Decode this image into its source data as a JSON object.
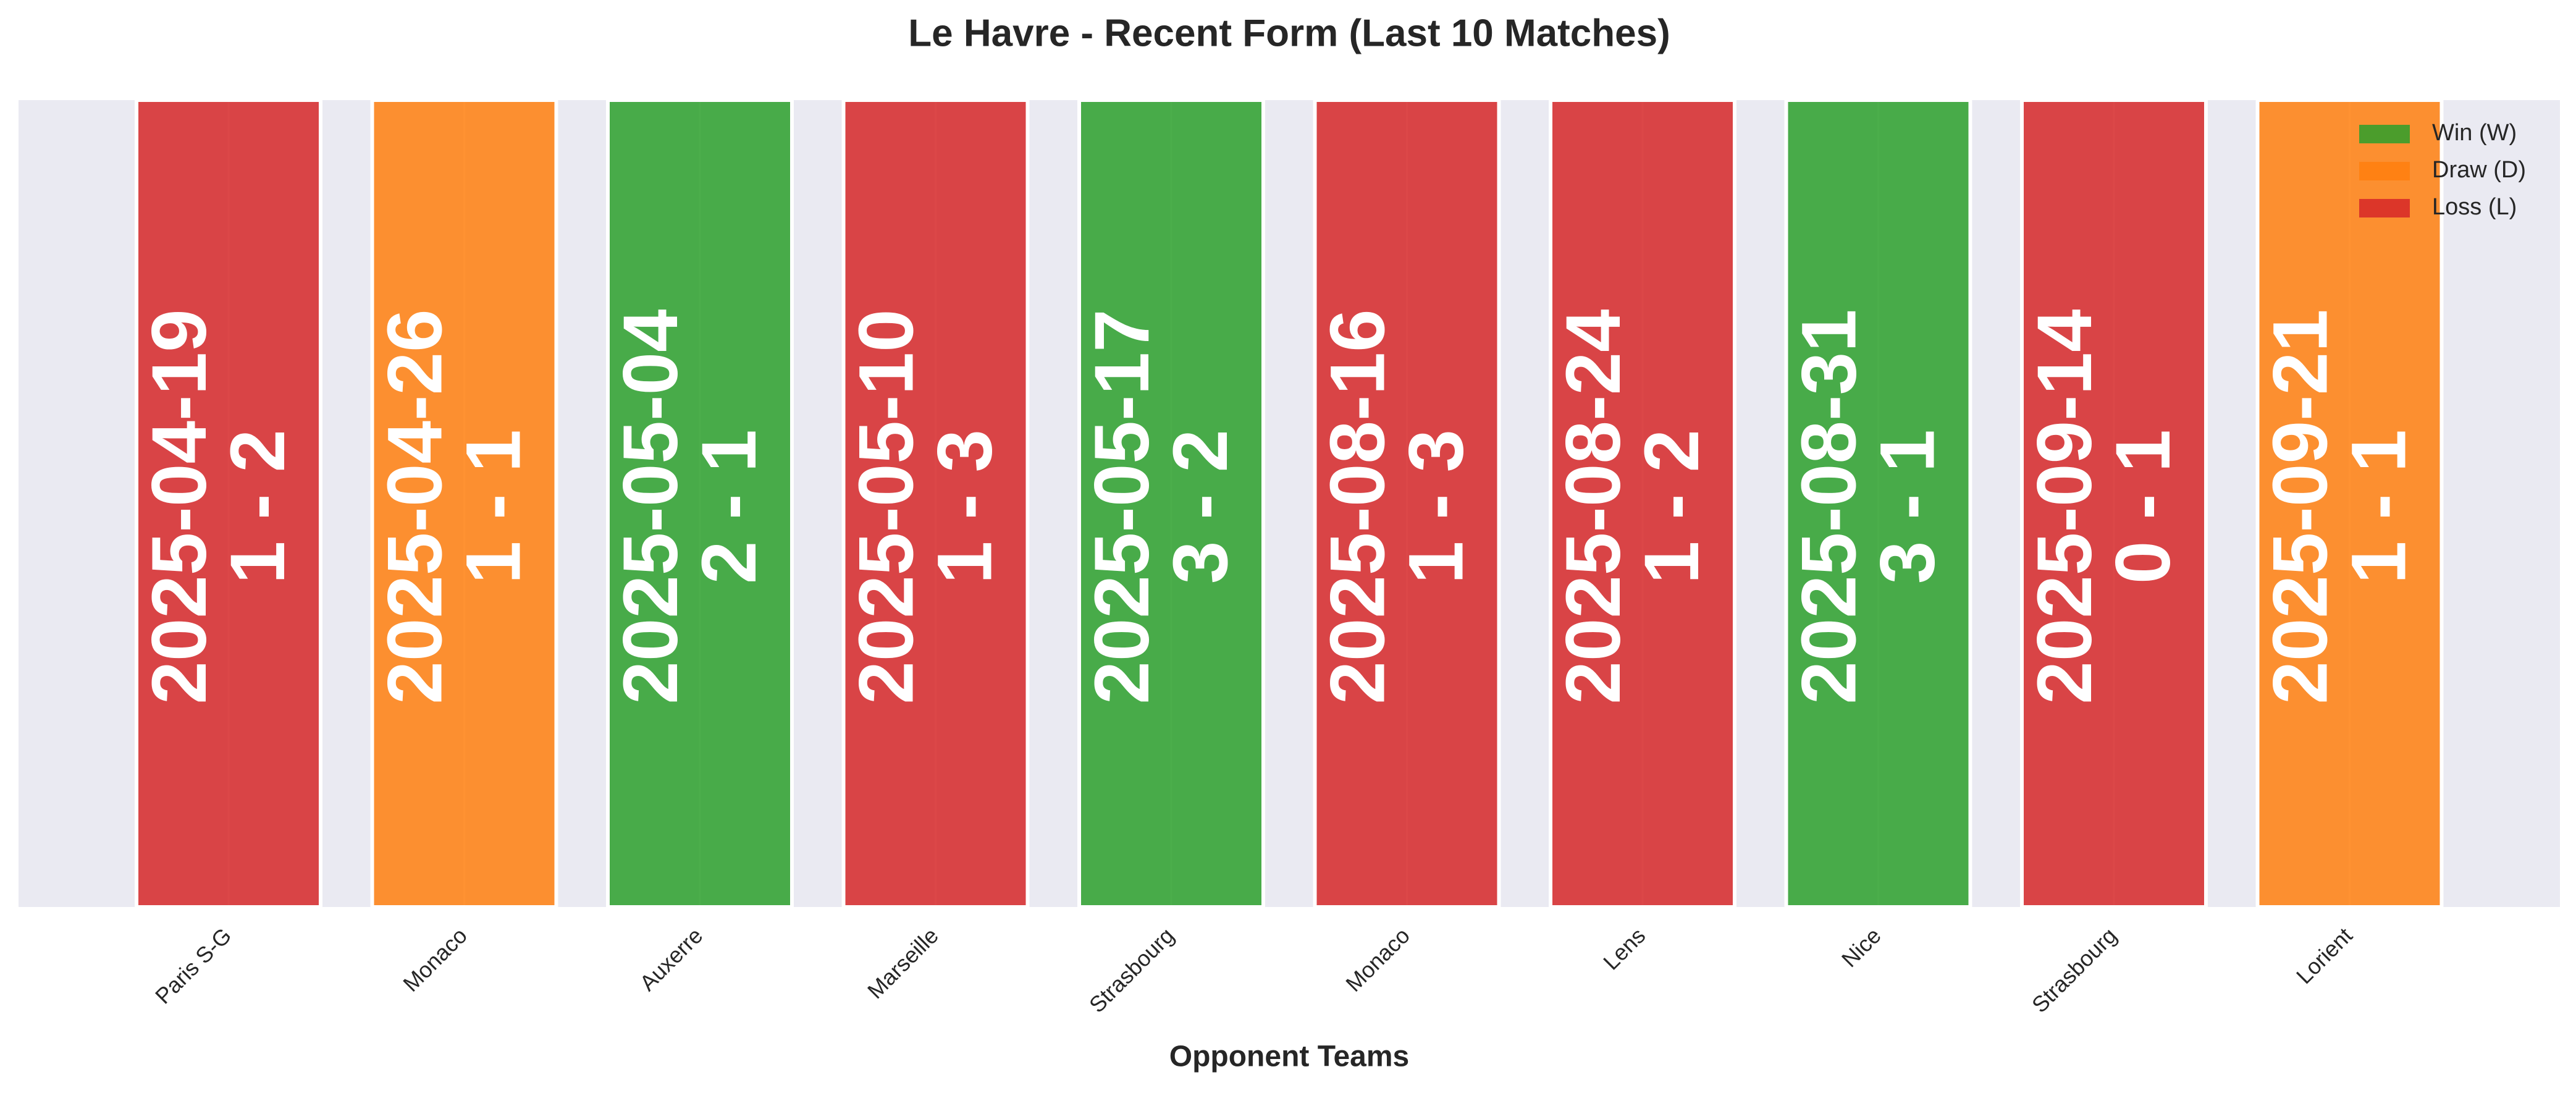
{
  "chart_data": {
    "type": "form",
    "title": "Le Havre - Recent Form (Last 10 Matches)",
    "x_label": "Opponent Teams",
    "categories": [
      "Paris S-G",
      "Monaco",
      "Auxerre",
      "Marseille",
      "Strasbourg",
      "Monaco",
      "Lens",
      "Nice",
      "Strasbourg",
      "Lorient"
    ],
    "dates": [
      "2025-04-19",
      "2025-04-26",
      "2025-05-04",
      "2025-05-10",
      "2025-05-17",
      "2025-08-16",
      "2025-08-24",
      "2025-08-31",
      "2025-09-14",
      "2025-09-21"
    ],
    "scores": [
      "1 - 2",
      "1 - 1",
      "2 - 1",
      "1 - 3",
      "3 - 2",
      "1 - 3",
      "1 - 2",
      "3 - 1",
      "0 - 1",
      "1 - 1"
    ],
    "colors": [
      "#d62728",
      "#ff7f0e",
      "#2ca02c",
      "#d62728",
      "#2ca02c",
      "#d62728",
      "#d62728",
      "#2ca02c",
      "#d62728",
      "#ff7f0e"
    ],
    "legend": [
      {
        "name": "Win (W)",
        "color": "#2ca02c"
      },
      {
        "name": "Draw (D)",
        "color": "#ff7f0e"
      },
      {
        "name": "Loss (L)",
        "color": "#d62728"
      }
    ],
    "legend_position": "upper right",
    "grid": true
  }
}
